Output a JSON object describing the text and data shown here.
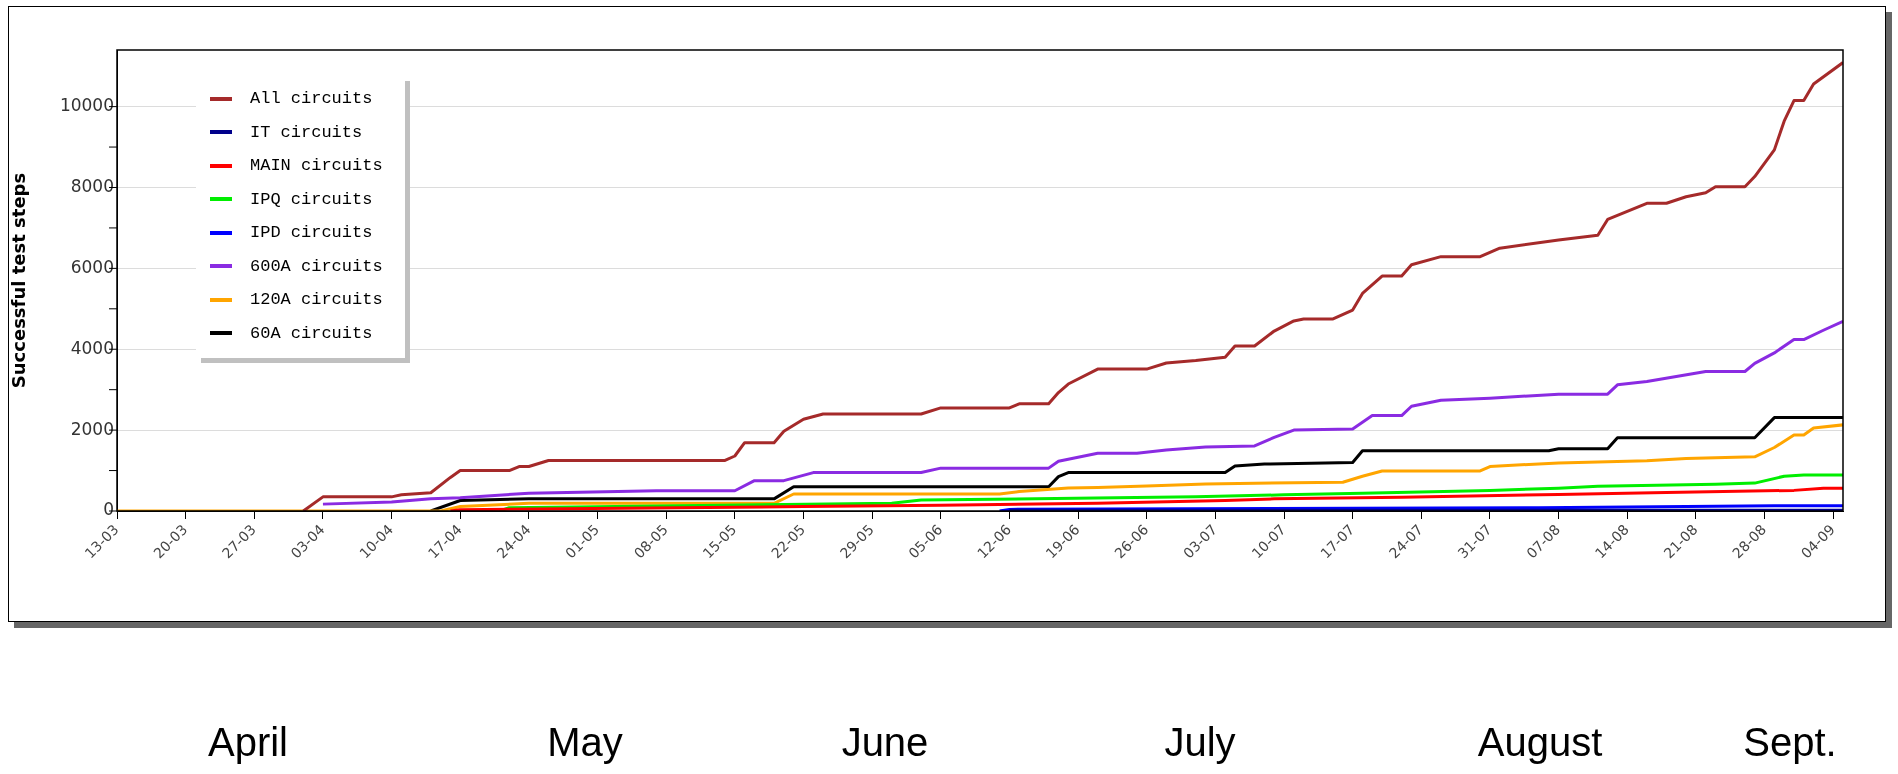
{
  "chart_data": {
    "type": "line",
    "ylabel": "Successful test steps",
    "legend": "top left",
    "grid": "y",
    "marker": "none",
    "line_style": "solid",
    "xlim": [
      "--03-13",
      "--09-05"
    ],
    "xticks": [
      {
        "value": "--03-13",
        "label": "13-03"
      },
      {
        "value": "--03-20",
        "label": "20-03"
      },
      {
        "value": "--03-27",
        "label": "27-03"
      },
      {
        "value": "--04-03",
        "label": "03-04"
      },
      {
        "value": "--04-10",
        "label": "10-04"
      },
      {
        "value": "--04-17",
        "label": "17-04"
      },
      {
        "value": "--04-24",
        "label": "24-04"
      },
      {
        "value": "--05-01",
        "label": "01-05"
      },
      {
        "value": "--05-08",
        "label": "08-05"
      },
      {
        "value": "--05-15",
        "label": "15-05"
      },
      {
        "value": "--05-22",
        "label": "22-05"
      },
      {
        "value": "--05-29",
        "label": "29-05"
      },
      {
        "value": "--06-05",
        "label": "05-06"
      },
      {
        "value": "--06-12",
        "label": "12-06"
      },
      {
        "value": "--06-19",
        "label": "19-06"
      },
      {
        "value": "--06-26",
        "label": "26-06"
      },
      {
        "value": "--07-03",
        "label": "03-07"
      },
      {
        "value": "--07-10",
        "label": "10-07"
      },
      {
        "value": "--07-17",
        "label": "17-07"
      },
      {
        "value": "--07-24",
        "label": "24-07"
      },
      {
        "value": "--07-31",
        "label": "31-07"
      },
      {
        "value": "--08-07",
        "label": "07-08"
      },
      {
        "value": "--08-14",
        "label": "14-08"
      },
      {
        "value": "--08-21",
        "label": "21-08"
      },
      {
        "value": "--08-28",
        "label": "28-08"
      },
      {
        "value": "--09-04",
        "label": "04-09"
      }
    ],
    "ylim": [
      0,
      11400
    ],
    "yticks": [
      0,
      {
        "value": 1000,
        "label": null
      },
      2000,
      {
        "value": 3000,
        "label": null
      },
      4000,
      {
        "value": 5000,
        "label": null
      },
      6000,
      {
        "value": 7000,
        "label": null
      },
      8000,
      {
        "value": 9000,
        "label": null
      },
      10000
    ],
    "annotations": [
      "April",
      "May",
      "June",
      "July",
      "August",
      "Sept."
    ],
    "series": [
      {
        "name": "All circuits",
        "color": "#a52a2a",
        "x": [
          "--04-01",
          "--04-03",
          "--04-10",
          "--04-11",
          "--04-14",
          "--04-16",
          "--04-17",
          "--04-22",
          "--04-23",
          "--04-24",
          "--04-26",
          "--05-14",
          "--05-15",
          "--05-16",
          "--05-19",
          "--05-20",
          "--05-22",
          "--05-24",
          "--06-03",
          "--06-05",
          "--06-12",
          "--06-13",
          "--06-16",
          "--06-17",
          "--06-18",
          "--06-21",
          "--06-26",
          "--06-28",
          "--07-01",
          "--07-04",
          "--07-05",
          "--07-07",
          "--07-09",
          "--07-11",
          "--07-12",
          "--07-15",
          "--07-17",
          "--07-18",
          "--07-20",
          "--07-22",
          "--07-23",
          "--07-26",
          "--07-30",
          "--08-01",
          "--08-07",
          "--08-11",
          "--08-12",
          "--08-16",
          "--08-18",
          "--08-20",
          "--08-22",
          "--08-23",
          "--08-26",
          "--08-27",
          "--08-29",
          "--08-30",
          "--08-31",
          "--09-01",
          "--09-02",
          "--09-05"
        ],
        "values": [
          0,
          350,
          350,
          400,
          450,
          830,
          1000,
          1000,
          1100,
          1100,
          1250,
          1250,
          1360,
          1690,
          1690,
          1970,
          2270,
          2400,
          2400,
          2550,
          2550,
          2650,
          2650,
          2930,
          3140,
          3510,
          3510,
          3660,
          3720,
          3800,
          4080,
          4080,
          4450,
          4700,
          4750,
          4750,
          4970,
          5380,
          5810,
          5810,
          6090,
          6290,
          6290,
          6500,
          6700,
          6820,
          7210,
          7610,
          7610,
          7770,
          7870,
          8020,
          8020,
          8270,
          8930,
          9640,
          10150,
          10150,
          10560,
          11090
        ]
      },
      {
        "name": "IT circuits",
        "color": "#00008b",
        "x": [
          "--06-12",
          "--09-05"
        ],
        "values": [
          20,
          20
        ]
      },
      {
        "name": "MAIN circuits",
        "color": "#ff0000",
        "x": [
          "--04-16",
          "--04-17",
          "--05-22",
          "--06-05",
          "--06-21",
          "--07-04",
          "--07-09",
          "--07-22",
          "--08-07",
          "--08-18",
          "--08-31",
          "--09-03",
          "--09-05"
        ],
        "values": [
          0,
          30,
          110,
          140,
          190,
          260,
          300,
          340,
          410,
          460,
          510,
          560,
          560
        ]
      },
      {
        "name": "IPQ circuits",
        "color": "#00ee00",
        "x": [
          "--04-21",
          "--04-22",
          "--05-31",
          "--06-03",
          "--07-01",
          "--07-10",
          "--07-18",
          "--07-31",
          "--08-07",
          "--08-11",
          "--08-23",
          "--08-27",
          "--08-30",
          "--09-01",
          "--09-05"
        ],
        "values": [
          0,
          80,
          190,
          270,
          350,
          400,
          440,
          510,
          560,
          610,
          660,
          690,
          860,
          890,
          890
        ]
      },
      {
        "name": "IPD circuits",
        "color": "#0000ff",
        "x": [
          "--06-11",
          "--06-12",
          "--08-05",
          "--08-29",
          "--09-05"
        ],
        "values": [
          0,
          40,
          80,
          130,
          130
        ]
      },
      {
        "name": "600A circuits",
        "color": "#8a2be2",
        "x": [
          "--04-03",
          "--04-10",
          "--04-14",
          "--04-17",
          "--04-24",
          "--05-07",
          "--05-15",
          "--05-17",
          "--05-20",
          "--05-23",
          "--06-03",
          "--06-05",
          "--06-16",
          "--06-17",
          "--06-21",
          "--06-25",
          "--06-28",
          "--07-02",
          "--07-07",
          "--07-09",
          "--07-11",
          "--07-17",
          "--07-19",
          "--07-22",
          "--07-23",
          "--07-26",
          "--07-31",
          "--08-07",
          "--08-12",
          "--08-13",
          "--08-16",
          "--08-22",
          "--08-26",
          "--08-27",
          "--08-29",
          "--08-31",
          "--09-01",
          "--09-03",
          "--09-05"
        ],
        "values": [
          170,
          220,
          300,
          330,
          440,
          500,
          500,
          750,
          750,
          950,
          950,
          1060,
          1060,
          1230,
          1430,
          1430,
          1510,
          1580,
          1610,
          1820,
          2000,
          2030,
          2360,
          2360,
          2590,
          2740,
          2790,
          2890,
          2890,
          3120,
          3200,
          3450,
          3450,
          3650,
          3910,
          4240,
          4240,
          4470,
          4690
        ]
      },
      {
        "name": "120A circuits",
        "color": "#ffa500",
        "x": [
          "--03-13",
          "--04-15",
          "--04-17",
          "--04-24",
          "--05-19",
          "--05-21",
          "--06-11",
          "--06-13",
          "--06-18",
          "--06-21",
          "--06-26",
          "--07-02",
          "--07-11",
          "--07-16",
          "--07-18",
          "--07-20",
          "--07-30",
          "--07-31",
          "--08-07",
          "--08-16",
          "--08-20",
          "--08-27",
          "--08-29",
          "--08-31",
          "--09-01",
          "--09-02",
          "--09-05"
        ],
        "values": [
          0,
          0,
          110,
          190,
          190,
          420,
          420,
          480,
          570,
          580,
          620,
          670,
          700,
          710,
          860,
          990,
          990,
          1100,
          1190,
          1240,
          1300,
          1340,
          1570,
          1880,
          1880,
          2050,
          2130
        ]
      },
      {
        "name": "60A circuits",
        "color": "#000000",
        "x": [
          "--04-14",
          "--04-17",
          "--04-24",
          "--05-19",
          "--05-21",
          "--06-16",
          "--06-17",
          "--06-18",
          "--07-04",
          "--07-05",
          "--07-08",
          "--07-17",
          "--07-18",
          "--08-06",
          "--08-07",
          "--08-12",
          "--08-13",
          "--08-27",
          "--08-29",
          "--09-05"
        ],
        "values": [
          0,
          260,
          300,
          300,
          600,
          600,
          850,
          950,
          950,
          1110,
          1160,
          1200,
          1490,
          1490,
          1540,
          1540,
          1810,
          1810,
          2310,
          2310
        ]
      }
    ]
  }
}
